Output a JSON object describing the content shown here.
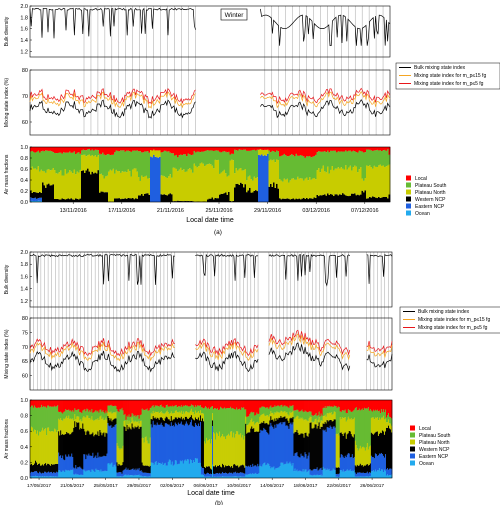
{
  "chart_data": [
    {
      "type": "line",
      "panel_label": "(a)",
      "annotation": "Winter",
      "xlabel": "Local date time",
      "x_ticks": [
        "13/11/2016",
        "17/11/2016",
        "21/11/2016",
        "25/11/2016",
        "29/11/2016",
        "03/12/2016",
        "07/12/2016"
      ],
      "diversity": {
        "ylabel": "Bulk diversity",
        "ylim": [
          1.1,
          2.0
        ],
        "y_ticks": [
          "2.0",
          "1.8",
          "1.6",
          "1.4",
          "1.2"
        ]
      },
      "mixing": {
        "ylabel": "Mixing state index (%)",
        "ylim": [
          55,
          80
        ],
        "y_ticks": [
          "80",
          "70",
          "60"
        ]
      },
      "mass": {
        "ylabel": "Air mass fractions",
        "ylim": [
          0,
          1
        ],
        "y_ticks": [
          "1.0",
          "0.8",
          "0.6",
          "0.4",
          "0.2",
          "0.0"
        ]
      },
      "series": [
        {
          "name": "Bulk mixing state index",
          "color": "#000000"
        },
        {
          "name": "Mixing state index for m_p≤15 fg",
          "color": "#f5a623"
        },
        {
          "name": "Mixing state index for m_p≤5 fg",
          "color": "#e8161a"
        }
      ],
      "air_masses": [
        {
          "name": "Local",
          "color": "#ff0000"
        },
        {
          "name": "Plateau South",
          "color": "#66bb33"
        },
        {
          "name": "Plateau North",
          "color": "#c8cc00"
        },
        {
          "name": "Western NCP",
          "color": "#000000"
        },
        {
          "name": "Eastern NCP",
          "color": "#1f5fe0"
        },
        {
          "name": "Ocean",
          "color": "#22aaee"
        }
      ]
    },
    {
      "type": "line",
      "panel_label": "(b)",
      "xlabel": "Local date time",
      "x_ticks": [
        "17/05/2017",
        "21/05/2017",
        "25/05/2017",
        "29/05/2017",
        "02/06/2017",
        "06/06/2017",
        "10/06/2017",
        "14/06/2017",
        "18/06/2017",
        "22/06/2017",
        "26/06/2017"
      ],
      "diversity": {
        "ylabel": "Bulk diversity",
        "ylim": [
          1.1,
          2.0
        ],
        "y_ticks": [
          "2.0",
          "1.8",
          "1.6",
          "1.4",
          "1.2"
        ]
      },
      "mixing": {
        "ylabel": "Mixing state index (%)",
        "ylim": [
          55,
          80
        ],
        "y_ticks": [
          "80",
          "75",
          "70",
          "65",
          "60"
        ]
      },
      "mass": {
        "ylabel": "Air mass fractions",
        "ylim": [
          0,
          1
        ],
        "y_ticks": [
          "1.0",
          "0.8",
          "0.6",
          "0.4",
          "0.2",
          "0.0"
        ]
      },
      "series": [
        {
          "name": "Bulk mixing state index",
          "color": "#000000"
        },
        {
          "name": "Mixing state index for m_p≤15 fg",
          "color": "#f5a623"
        },
        {
          "name": "Mixing state index for m_p≤5 fg",
          "color": "#e8161a"
        }
      ],
      "air_masses": [
        {
          "name": "Local",
          "color": "#ff0000"
        },
        {
          "name": "Plateau South",
          "color": "#66bb33"
        },
        {
          "name": "Plateau North",
          "color": "#c8cc00"
        },
        {
          "name": "Western NCP",
          "color": "#000000"
        },
        {
          "name": "Eastern NCP",
          "color": "#1f5fe0"
        },
        {
          "name": "Ocean",
          "color": "#22aaee"
        }
      ]
    }
  ]
}
